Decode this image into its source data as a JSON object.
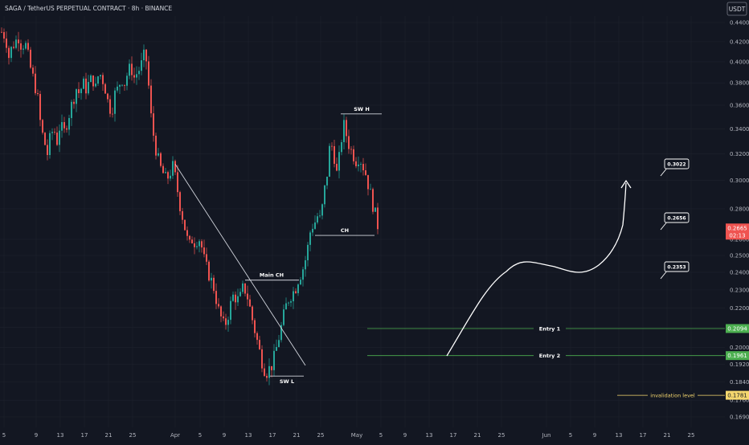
{
  "header": {
    "title": "SAGA / TetherUS PERPETUAL CONTRACT · 8h · BINANCE",
    "currency": "USDT"
  },
  "chart_data": {
    "type": "candlestick",
    "colors": {
      "up": "#26a69a",
      "down": "#ef5350",
      "bg": "#131722",
      "text": "#b2b5be",
      "grid": "#1e222d"
    },
    "y_axis": {
      "scale": "log",
      "ticks": [
        "0.4400",
        "0.4200",
        "0.4000",
        "0.3800",
        "0.3600",
        "0.3400",
        "0.3200",
        "0.3000",
        "0.2800",
        "0.2600",
        "0.2500",
        "0.2400",
        "0.2300",
        "0.2200",
        "0.2100",
        "0.2000",
        "0.1920",
        "0.1840",
        "0.1760",
        "0.1690"
      ]
    },
    "x_axis": {
      "ticks": [
        "5",
        "9",
        "13",
        "17",
        "21",
        "25",
        "Apr",
        "5",
        "9",
        "13",
        "17",
        "21",
        "25",
        "May",
        "5",
        "9",
        "13",
        "17",
        "21",
        "25",
        "Jun",
        "5",
        "9",
        "13",
        "17",
        "21",
        "25"
      ]
    },
    "price_labels": [
      {
        "text": "0.2665",
        "sub": "02:13",
        "color": "#ef5350",
        "price": 0.2665
      },
      {
        "text": "0.2094",
        "color": "#4caf50",
        "price": 0.2094
      },
      {
        "text": "0.1961",
        "color": "#4caf50",
        "price": 0.1961
      },
      {
        "text": "0.1781",
        "color": "#f5d76e",
        "price": 0.1781
      }
    ],
    "annotations": {
      "sw_h": "SW H",
      "ch": "CH",
      "main_ch": "Main CH",
      "sw_l": "SW L",
      "entry1": "Entry 1",
      "entry2": "Entry 2",
      "invalidation": "invalidation level",
      "targets": [
        "0.3022",
        "0.2656",
        "0.2353"
      ]
    },
    "levels": {
      "entry1": 0.2094,
      "entry2": 0.1961,
      "invalidation": 0.1781,
      "sw_h": 0.3525,
      "ch": 0.2625,
      "main_ch": 0.2355,
      "sw_l": 0.1866
    },
    "price_path": [
      [
        1,
        0.43
      ],
      [
        6,
        0.425
      ],
      [
        10,
        0.405
      ],
      [
        14,
        0.415
      ],
      [
        18,
        0.42
      ],
      [
        22,
        0.425
      ],
      [
        26,
        0.415
      ],
      [
        30,
        0.42
      ],
      [
        34,
        0.405
      ],
      [
        38,
        0.39
      ],
      [
        42,
        0.38
      ],
      [
        46,
        0.365
      ],
      [
        50,
        0.34
      ],
      [
        54,
        0.33
      ],
      [
        58,
        0.32
      ],
      [
        62,
        0.335
      ],
      [
        66,
        0.34
      ],
      [
        70,
        0.33
      ],
      [
        74,
        0.345
      ],
      [
        78,
        0.335
      ],
      [
        82,
        0.345
      ],
      [
        86,
        0.355
      ],
      [
        90,
        0.365
      ],
      [
        94,
        0.375
      ],
      [
        98,
        0.37
      ],
      [
        102,
        0.38
      ],
      [
        106,
        0.375
      ],
      [
        110,
        0.38
      ],
      [
        114,
        0.385
      ],
      [
        118,
        0.375
      ],
      [
        122,
        0.39
      ],
      [
        126,
        0.385
      ],
      [
        130,
        0.375
      ],
      [
        134,
        0.36
      ],
      [
        138,
        0.355
      ],
      [
        142,
        0.37
      ],
      [
        146,
        0.375
      ],
      [
        150,
        0.385
      ],
      [
        154,
        0.38
      ],
      [
        158,
        0.39
      ],
      [
        162,
        0.395
      ],
      [
        166,
        0.385
      ],
      [
        170,
        0.39
      ],
      [
        174,
        0.395
      ],
      [
        178,
        0.405
      ],
      [
        182,
        0.4
      ],
      [
        186,
        0.355
      ],
      [
        190,
        0.335
      ],
      [
        194,
        0.32
      ],
      [
        198,
        0.31
      ],
      [
        202,
        0.305
      ],
      [
        206,
        0.3
      ],
      [
        210,
        0.305
      ],
      [
        214,
        0.31
      ],
      [
        218,
        0.3
      ],
      [
        222,
        0.285
      ],
      [
        226,
        0.275
      ],
      [
        230,
        0.265
      ],
      [
        234,
        0.255
      ],
      [
        238,
        0.26
      ],
      [
        242,
        0.258
      ],
      [
        246,
        0.262
      ],
      [
        250,
        0.255
      ],
      [
        254,
        0.245
      ],
      [
        258,
        0.24
      ],
      [
        262,
        0.235
      ],
      [
        266,
        0.23
      ],
      [
        270,
        0.22
      ],
      [
        274,
        0.215
      ],
      [
        278,
        0.21
      ],
      [
        282,
        0.215
      ],
      [
        286,
        0.222
      ],
      [
        290,
        0.228
      ],
      [
        294,
        0.224
      ],
      [
        298,
        0.226
      ],
      [
        302,
        0.232
      ],
      [
        306,
        0.228
      ],
      [
        310,
        0.22
      ],
      [
        314,
        0.212
      ],
      [
        318,
        0.205
      ],
      [
        322,
        0.198
      ],
      [
        326,
        0.192
      ],
      [
        330,
        0.188
      ],
      [
        334,
        0.19
      ],
      [
        338,
        0.192
      ],
      [
        342,
        0.198
      ],
      [
        346,
        0.205
      ],
      [
        350,
        0.212
      ],
      [
        354,
        0.22
      ],
      [
        358,
        0.225
      ],
      [
        362,
        0.228
      ],
      [
        366,
        0.23
      ],
      [
        370,
        0.236
      ],
      [
        374,
        0.24
      ],
      [
        378,
        0.245
      ],
      [
        382,
        0.255
      ],
      [
        386,
        0.268
      ],
      [
        390,
        0.27
      ],
      [
        394,
        0.275
      ],
      [
        398,
        0.272
      ],
      [
        402,
        0.29
      ],
      [
        406,
        0.305
      ],
      [
        410,
        0.33
      ],
      [
        414,
        0.322
      ],
      [
        418,
        0.305
      ],
      [
        422,
        0.32
      ],
      [
        426,
        0.345
      ],
      [
        430,
        0.335
      ],
      [
        434,
        0.325
      ],
      [
        438,
        0.32
      ],
      [
        442,
        0.315
      ],
      [
        446,
        0.318
      ],
      [
        450,
        0.312
      ],
      [
        454,
        0.305
      ],
      [
        458,
        0.295
      ],
      [
        462,
        0.285
      ],
      [
        466,
        0.276
      ],
      [
        469,
        0.266
      ]
    ]
  }
}
